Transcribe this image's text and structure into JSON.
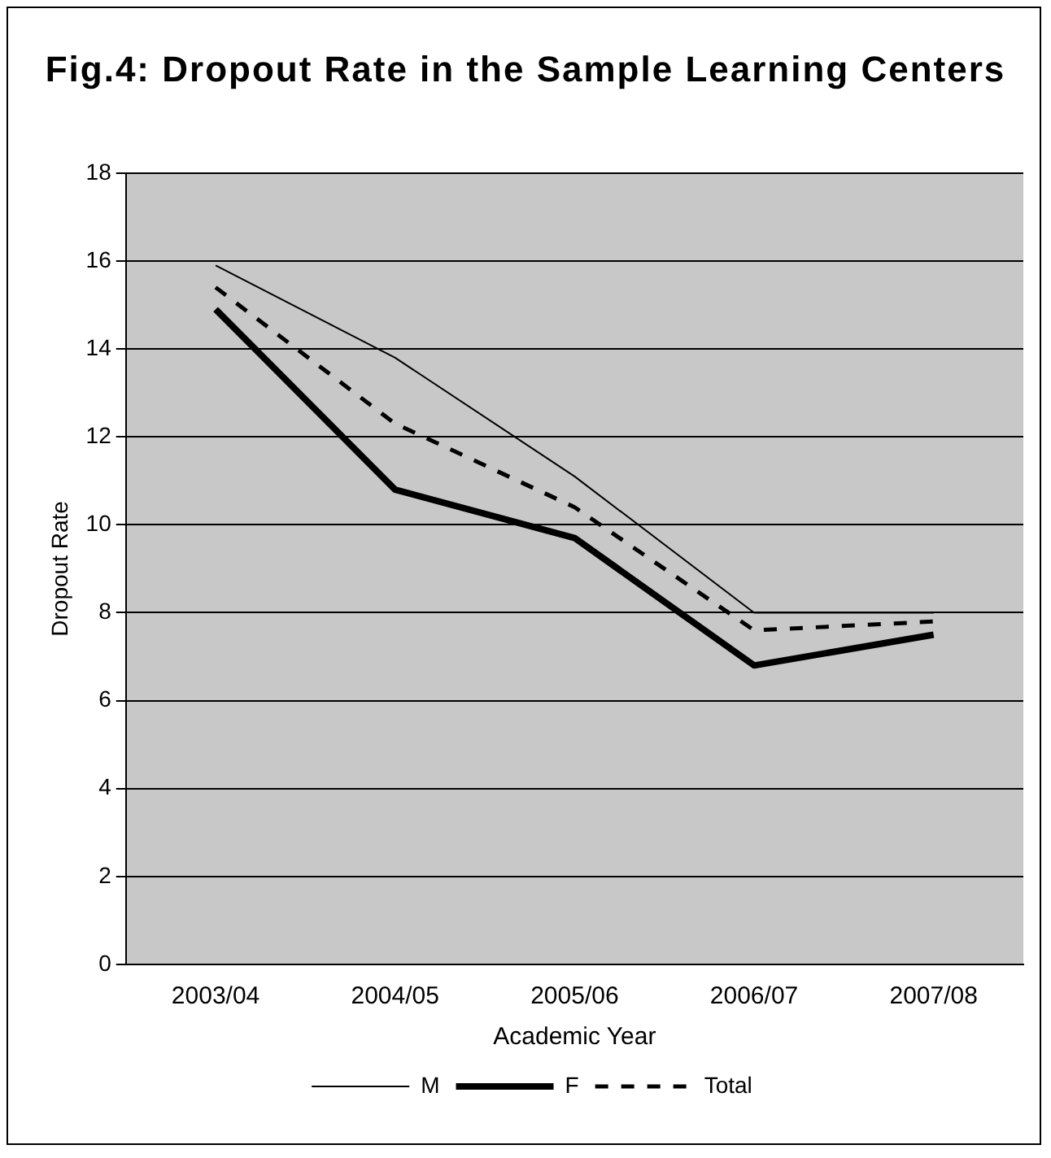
{
  "chart_data": {
    "type": "line",
    "title": "Fig.4: Dropout Rate in the Sample Learning Centers",
    "xlabel": "Academic Year",
    "ylabel": "Dropout Rate",
    "categories": [
      "2003/04",
      "2004/05",
      "2005/06",
      "2006/07",
      "2007/08"
    ],
    "series": [
      {
        "name": "M",
        "color": "#000000",
        "values": [
          15.9,
          13.8,
          11.1,
          8.0,
          8.0
        ],
        "line_style": "solid"
      },
      {
        "name": "F",
        "color": "#000000",
        "values": [
          14.9,
          10.8,
          9.7,
          6.8,
          7.5
        ],
        "line_style": "solid"
      },
      {
        "name": "Total",
        "color": "#000000",
        "values": [
          15.4,
          12.3,
          10.4,
          7.6,
          7.8
        ],
        "line_style": "dashed"
      }
    ],
    "ylim": [
      0,
      18
    ],
    "yticks": [
      0,
      2,
      4,
      6,
      8,
      10,
      12,
      14,
      16,
      18
    ],
    "grid": "y",
    "legend": "bottom",
    "marker": "none"
  }
}
